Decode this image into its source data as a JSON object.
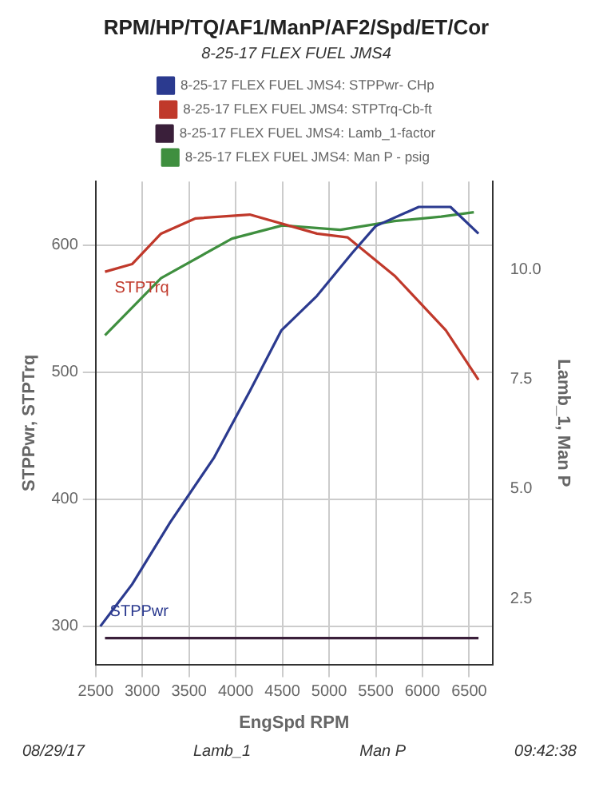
{
  "chart_data": {
    "type": "line",
    "title": "RPM/HP/TQ/AF1/ManP/AF2/Spd/ET/Cor",
    "subtitle": "8-25-17 FLEX FUEL JMS4",
    "xlabel": "EngSpd RPM",
    "ylabel": "STPPwr, STPTrq",
    "y2label": "Lamb_1, Man P",
    "xlim": [
      2500,
      6750
    ],
    "xticks": [
      2500,
      3000,
      3500,
      4000,
      4500,
      5000,
      5500,
      6000,
      6500
    ],
    "ylim": [
      270,
      650
    ],
    "yticks": [
      300,
      400,
      500,
      600
    ],
    "y2lim": [
      1,
      12
    ],
    "y2ticks": [
      {
        "value": 2.5,
        "label": "2.5"
      },
      {
        "value": 5,
        "label": "5.0"
      },
      {
        "value": 7.5,
        "label": "7.5"
      },
      {
        "value": 10,
        "label": "10.0"
      }
    ],
    "grid": true,
    "legend": "top",
    "marker": "none",
    "line_style": "solid",
    "series": [
      {
        "name": "8-25-17 FLEX FUEL JMS4: STPPwr- CHp",
        "color": "#2b3a8f",
        "x": [
          2550,
          2890,
          3300,
          3770,
          4150,
          4490,
          4870,
          5250,
          5500,
          5960,
          6300,
          6600
        ],
        "values": [
          300,
          333,
          382,
          433,
          485,
          533,
          560,
          594,
          615,
          630,
          630,
          609
        ]
      },
      {
        "name": "8-25-17 FLEX FUEL JMS4: STPTrq-Cb-ft",
        "color": "#c0392b",
        "x": [
          2600,
          2890,
          3200,
          3570,
          4150,
          4870,
          5200,
          5700,
          6250,
          6600
        ],
        "values": [
          579,
          585,
          609,
          621,
          624,
          609,
          606,
          576,
          533,
          494
        ]
      },
      {
        "name": "8-25-17 FLEX FUEL JMS4: Lamb_1-factor",
        "color": "#3a1f3a",
        "axis": "y2",
        "x": [
          2600,
          6600
        ],
        "values": [
          1.6,
          1.6
        ]
      },
      {
        "name": "8-25-17 FLEX FUEL JMS4: Man P - psig",
        "color": "#3f8f3f",
        "axis": "y2",
        "x": [
          2600,
          3200,
          3960,
          4500,
          5120,
          5700,
          6200,
          6550
        ],
        "values": [
          8.5,
          9.8,
          10.7,
          11.0,
          10.9,
          11.1,
          11.2,
          11.3
        ]
      }
    ],
    "annotations": [
      {
        "text": "STPPwr",
        "x": 2550,
        "y": 300
      },
      {
        "text": "STPTrq",
        "x": 2600,
        "y": 579
      },
      "08/29/17",
      "Lamb_1",
      "Man P",
      "09:42:38"
    ]
  }
}
